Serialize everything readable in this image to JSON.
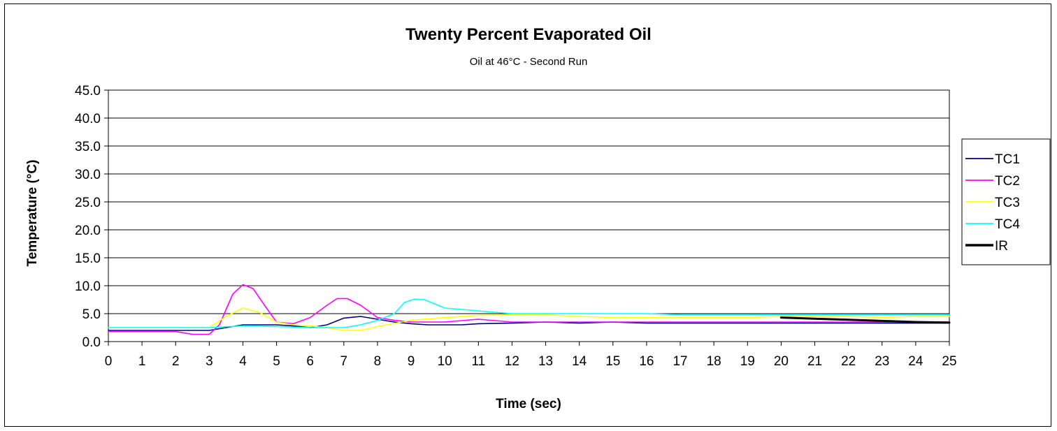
{
  "chart_data": {
    "type": "line",
    "title": "Twenty Percent Evaporated Oil",
    "subtitle": "Oil at 46°C - Second Run",
    "xlabel": "Time (sec)",
    "ylabel": "Temperature (°C)",
    "xlim": [
      0,
      25
    ],
    "ylim": [
      0,
      45
    ],
    "x_ticks": [
      "0",
      "1",
      "2",
      "3",
      "4",
      "5",
      "6",
      "7",
      "8",
      "9",
      "10",
      "11",
      "12",
      "13",
      "14",
      "15",
      "16",
      "17",
      "18",
      "19",
      "20",
      "21",
      "22",
      "23",
      "24",
      "25"
    ],
    "y_ticks": [
      "0.0",
      "5.0",
      "10.0",
      "15.0",
      "20.0",
      "25.0",
      "30.0",
      "35.0",
      "40.0",
      "45.0"
    ],
    "grid": "horizontal",
    "legend_position": "right",
    "series": [
      {
        "name": "TC1",
        "color": "#000080",
        "points": [
          [
            0,
            2
          ],
          [
            1,
            2
          ],
          [
            2,
            2
          ],
          [
            2.5,
            2
          ],
          [
            3,
            2
          ],
          [
            3.5,
            2.5
          ],
          [
            4,
            3
          ],
          [
            4.5,
            3
          ],
          [
            5,
            3
          ],
          [
            5.5,
            2.8
          ],
          [
            6,
            2.5
          ],
          [
            6.5,
            3
          ],
          [
            7,
            4.2
          ],
          [
            7.5,
            4.5
          ],
          [
            8,
            4
          ],
          [
            8.5,
            3.5
          ],
          [
            9,
            3.2
          ],
          [
            9.5,
            3
          ],
          [
            10,
            3
          ],
          [
            10.5,
            3
          ],
          [
            11,
            3.2
          ],
          [
            12,
            3.3
          ],
          [
            13,
            3.5
          ],
          [
            14,
            3.3
          ],
          [
            15,
            3.5
          ],
          [
            16,
            3.3
          ],
          [
            17,
            3.3
          ],
          [
            18,
            3.3
          ],
          [
            19,
            3.3
          ],
          [
            20,
            3.3
          ],
          [
            21,
            3.3
          ],
          [
            22,
            3.3
          ],
          [
            23,
            3.3
          ],
          [
            24,
            3.3
          ],
          [
            25,
            3.3
          ]
        ]
      },
      {
        "name": "TC2",
        "color": "#ff00ff",
        "points": [
          [
            0,
            1.8
          ],
          [
            1,
            1.8
          ],
          [
            2,
            1.8
          ],
          [
            2.5,
            1.3
          ],
          [
            3,
            1.3
          ],
          [
            3.3,
            3
          ],
          [
            3.7,
            8.5
          ],
          [
            4,
            10.2
          ],
          [
            4.3,
            9.5
          ],
          [
            4.7,
            6
          ],
          [
            5,
            3.5
          ],
          [
            5.5,
            3.2
          ],
          [
            6,
            4.3
          ],
          [
            6.5,
            6.5
          ],
          [
            6.8,
            7.7
          ],
          [
            7.1,
            7.7
          ],
          [
            7.5,
            6.5
          ],
          [
            8,
            4.3
          ],
          [
            8.5,
            3.8
          ],
          [
            9,
            3.5
          ],
          [
            10,
            3.5
          ],
          [
            11,
            4
          ],
          [
            12,
            3.5
          ],
          [
            13,
            3.5
          ],
          [
            14,
            3.5
          ],
          [
            15,
            3.5
          ],
          [
            16,
            3.5
          ],
          [
            17,
            3.5
          ],
          [
            18,
            3.5
          ],
          [
            19,
            3.5
          ],
          [
            20,
            3.5
          ],
          [
            21,
            3.5
          ],
          [
            22,
            3.5
          ],
          [
            23,
            3.5
          ],
          [
            24,
            3.5
          ],
          [
            25,
            3.5
          ]
        ]
      },
      {
        "name": "TC3",
        "color": "#ffff00",
        "points": [
          [
            0,
            2.5
          ],
          [
            1,
            2.5
          ],
          [
            2,
            2.5
          ],
          [
            3,
            2.5
          ],
          [
            3.5,
            4.5
          ],
          [
            4,
            6
          ],
          [
            4.5,
            5.2
          ],
          [
            5,
            3.5
          ],
          [
            5.5,
            3
          ],
          [
            6,
            2.8
          ],
          [
            6.5,
            2.5
          ],
          [
            7,
            2
          ],
          [
            7.5,
            2
          ],
          [
            8,
            2.7
          ],
          [
            9,
            3.8
          ],
          [
            10,
            4.3
          ],
          [
            11,
            4.7
          ],
          [
            12,
            4.8
          ],
          [
            13,
            4.8
          ],
          [
            14,
            4.5
          ],
          [
            15,
            4.3
          ],
          [
            16,
            4.3
          ],
          [
            17,
            4.3
          ],
          [
            18,
            4.3
          ],
          [
            19,
            4.3
          ],
          [
            20,
            4.5
          ],
          [
            21,
            4.5
          ],
          [
            22,
            4.5
          ],
          [
            23,
            4.3
          ],
          [
            24,
            4.5
          ],
          [
            25,
            4.5
          ]
        ]
      },
      {
        "name": "TC4",
        "color": "#00ffff",
        "points": [
          [
            0,
            2.5
          ],
          [
            1,
            2.5
          ],
          [
            2,
            2.5
          ],
          [
            3,
            2.5
          ],
          [
            4,
            2.8
          ],
          [
            5,
            2.7
          ],
          [
            6,
            2.5
          ],
          [
            7,
            2.5
          ],
          [
            7.5,
            3
          ],
          [
            8,
            3.8
          ],
          [
            8.5,
            5
          ],
          [
            8.8,
            7
          ],
          [
            9.1,
            7.6
          ],
          [
            9.4,
            7.5
          ],
          [
            10,
            6
          ],
          [
            11,
            5.5
          ],
          [
            12,
            5
          ],
          [
            13,
            5
          ],
          [
            14,
            5
          ],
          [
            15,
            5
          ],
          [
            16,
            5
          ],
          [
            17,
            4.8
          ],
          [
            18,
            4.8
          ],
          [
            19,
            4.8
          ],
          [
            20,
            4.8
          ],
          [
            21,
            4.8
          ],
          [
            22,
            4.8
          ],
          [
            23,
            4.8
          ],
          [
            24,
            4.8
          ],
          [
            25,
            4.8
          ]
        ]
      },
      {
        "name": "IR",
        "color": "#000000",
        "points": [
          [
            20,
            4.3
          ],
          [
            21,
            4.1
          ],
          [
            22,
            3.9
          ],
          [
            23,
            3.7
          ],
          [
            24,
            3.5
          ],
          [
            25,
            3.4
          ]
        ]
      }
    ]
  }
}
